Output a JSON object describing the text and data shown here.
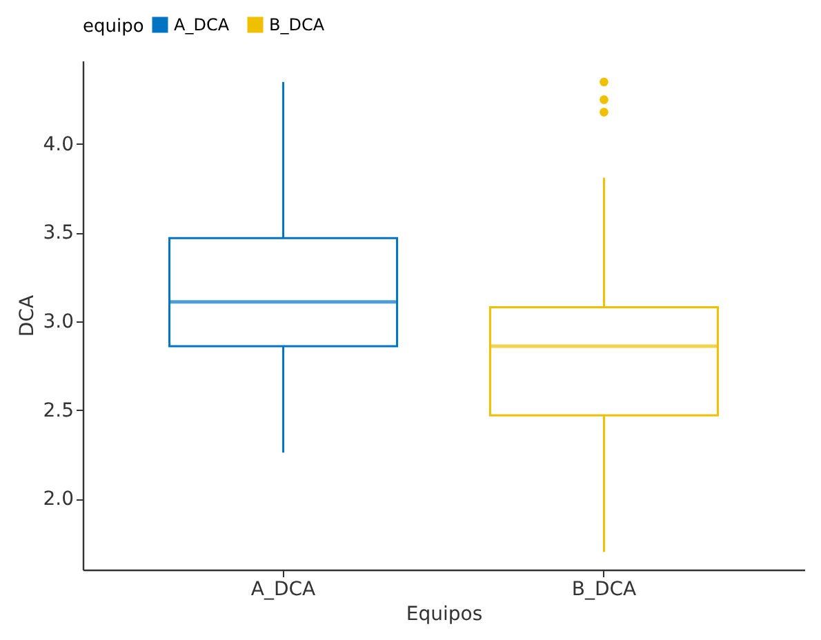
{
  "chart_data": {
    "type": "box",
    "xlabel": "Equipos",
    "ylabel": "DCA",
    "legend_title": "equipo",
    "legend": "top",
    "grid": false,
    "categories": [
      "A_DCA",
      "B_DCA"
    ],
    "series": [
      {
        "name": "A_DCA",
        "color": "#0073c2",
        "boxes": [
          {
            "low": 2.26,
            "q1": 2.86,
            "median": 3.11,
            "q3": 3.47,
            "high": 4.35
          },
          null
        ]
      },
      {
        "name": "B_DCA",
        "color": "#efc000",
        "boxes": [
          null,
          {
            "low": 1.7,
            "q1": 2.47,
            "median": 2.86,
            "q3": 3.08,
            "high": 3.81,
            "outliers": [
              4.18,
              4.25,
              4.35
            ]
          }
        ]
      }
    ],
    "ylim": [
      1.6,
      4.47
    ],
    "yticks": [
      {
        "value": 2,
        "label": "2.0"
      },
      {
        "value": 2.5,
        "label": "2.5"
      },
      {
        "value": 3,
        "label": "3.0"
      },
      {
        "value": 3.5,
        "label": "3.5"
      },
      {
        "value": 4,
        "label": "4.0"
      }
    ]
  }
}
